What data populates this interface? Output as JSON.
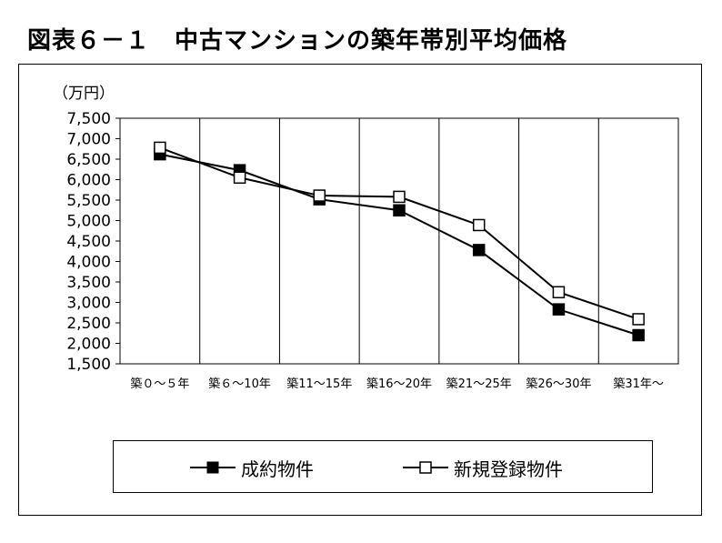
{
  "figure_title": "図表６－１　中古マンションの築年帯別平均価格",
  "chart_data": {
    "type": "line",
    "title": "図表６－１　中古マンションの築年帯別平均価格",
    "ylabel": "（万円）",
    "xlabel": "",
    "ylim": [
      1500,
      7500
    ],
    "yticks": [
      7500,
      7000,
      6500,
      6000,
      5500,
      5000,
      4500,
      4000,
      3500,
      3000,
      2500,
      2000,
      1500
    ],
    "ytick_labels": [
      "7,500",
      "7,000",
      "6,500",
      "6,000",
      "5,500",
      "5,000",
      "4,500",
      "4,000",
      "3,500",
      "3,000",
      "2,500",
      "2,000",
      "1,500"
    ],
    "categories": [
      "築０～５年",
      "築６～10年",
      "築11～15年",
      "築16～20年",
      "築21～25年",
      "築26～30年",
      "築31年～"
    ],
    "grid": "vertical",
    "legend_position": "bottom",
    "series": [
      {
        "name": "成約物件",
        "marker": "filled-square",
        "values": [
          6620,
          6230,
          5520,
          5250,
          4280,
          2830,
          2200
        ]
      },
      {
        "name": "新規登録物件",
        "marker": "open-square",
        "values": [
          6780,
          6050,
          5610,
          5580,
          4890,
          3250,
          2590
        ]
      }
    ]
  },
  "colors": {
    "line": "#000000",
    "background": "#ffffff"
  }
}
